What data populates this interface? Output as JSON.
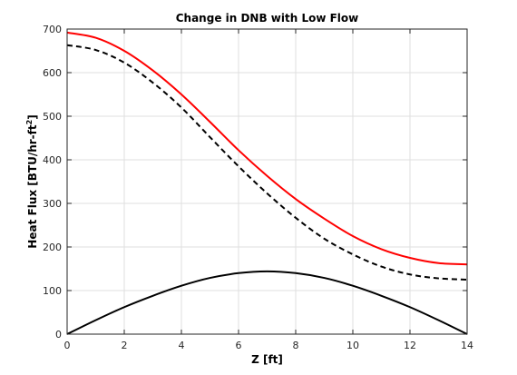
{
  "chart_data": {
    "type": "line",
    "title": "Change in DNB with Low Flow",
    "xlabel": "Z [ft]",
    "ylabel": "Heat Flux [BTU/hr-ft",
    "ylabel_superscript": "2",
    "ylabel_suffix": "]",
    "xlim": [
      0,
      14
    ],
    "ylim": [
      0,
      700
    ],
    "xticks": [
      0,
      2,
      4,
      6,
      8,
      10,
      12,
      14
    ],
    "yticks": [
      0,
      100,
      200,
      300,
      400,
      500,
      600,
      700
    ],
    "grid": true,
    "legend": "none",
    "series": [
      {
        "color": "#ff0000",
        "style": "solid",
        "x": [
          0,
          1,
          2,
          3,
          4,
          5,
          6,
          7,
          8,
          9,
          10,
          11,
          12,
          13,
          14
        ],
        "y": [
          692,
          680,
          650,
          605,
          550,
          487,
          422,
          363,
          310,
          265,
          225,
          195,
          175,
          163,
          160
        ]
      },
      {
        "color": "#000000",
        "style": "dashed",
        "x": [
          0,
          1,
          2,
          3,
          4,
          5,
          6,
          7,
          8,
          9,
          10,
          11,
          12,
          13,
          14
        ],
        "y": [
          663,
          652,
          623,
          577,
          520,
          452,
          385,
          323,
          267,
          219,
          183,
          155,
          137,
          128,
          125
        ]
      },
      {
        "color": "#000000",
        "style": "solid",
        "x": [
          0,
          1,
          2,
          3,
          4,
          5,
          6,
          7,
          8,
          9,
          10,
          11,
          12,
          13,
          14
        ],
        "y": [
          0,
          32,
          62,
          88,
          111,
          129,
          140,
          144,
          140,
          129,
          111,
          88,
          62,
          32,
          0
        ]
      }
    ]
  }
}
